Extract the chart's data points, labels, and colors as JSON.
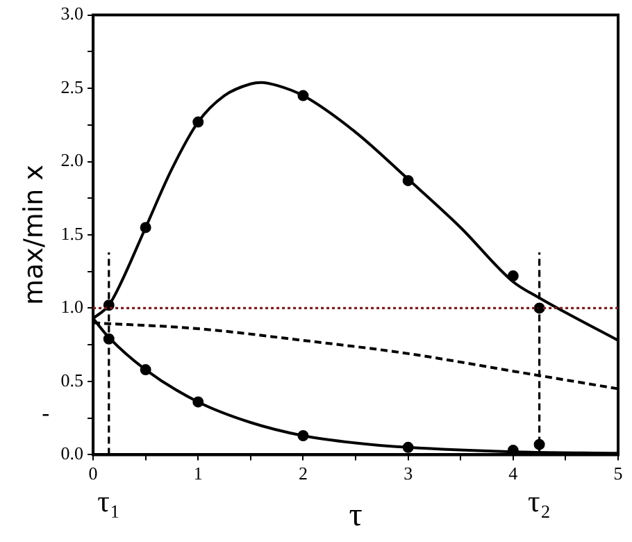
{
  "chart_data": {
    "type": "line",
    "xlabel": "τ",
    "ylabel": "max/min x",
    "annotations": [
      "-"
    ],
    "xlim": [
      0,
      5
    ],
    "ylim": [
      0,
      3
    ],
    "xticks": [
      0,
      {
        "value": 0.5,
        "label": null
      },
      1,
      {
        "value": 1.5,
        "label": null
      },
      2,
      {
        "value": 2.5,
        "label": null
      },
      3,
      {
        "value": 3.5,
        "label": null
      },
      4,
      {
        "value": 4.5,
        "label": null
      },
      5
    ],
    "yticks": [
      {
        "value": 0,
        "label": "0.0"
      },
      {
        "value": 0.25,
        "label": null
      },
      {
        "value": 0.5,
        "label": "0.5"
      },
      {
        "value": 0.75,
        "label": null
      },
      {
        "value": 1,
        "label": "1.0"
      },
      {
        "value": 1.25,
        "label": null
      },
      {
        "value": 1.5,
        "label": "1.5"
      },
      {
        "value": 1.75,
        "label": null
      },
      {
        "value": 2,
        "label": "2.0"
      },
      {
        "value": 2.25,
        "label": null
      },
      {
        "value": 2.5,
        "label": "2.5"
      },
      {
        "value": 2.75,
        "label": null
      },
      {
        "value": 3,
        "label": "3.0"
      }
    ],
    "grid": false,
    "legend": false,
    "series": [
      {
        "type": "line",
        "color": "#000000",
        "line_style": "solid",
        "x": [
          0,
          0.15,
          0.25,
          0.5,
          0.75,
          1,
          1.25,
          1.5,
          1.6,
          1.75,
          2,
          2.5,
          3,
          3.5,
          4,
          4.25,
          4.5,
          5
        ],
        "values": [
          0.93,
          1.02,
          1.15,
          1.55,
          1.95,
          2.27,
          2.45,
          2.53,
          2.54,
          2.52,
          2.45,
          2.2,
          1.88,
          1.55,
          1.18,
          1.07,
          0.97,
          0.78
        ]
      },
      {
        "type": "line",
        "color": "#000000",
        "line_style": "solid",
        "x": [
          0,
          0.15,
          0.5,
          1,
          1.5,
          2,
          2.5,
          3,
          4,
          5
        ],
        "values": [
          0.93,
          0.8,
          0.58,
          0.36,
          0.22,
          0.13,
          0.08,
          0.05,
          0.02,
          0.01
        ]
      },
      {
        "type": "line",
        "color": "#000000",
        "line_style": "dashed",
        "x": [
          0,
          1,
          2,
          3,
          4,
          5
        ],
        "values": [
          0.9,
          0.86,
          0.78,
          0.69,
          0.57,
          0.45
        ]
      },
      {
        "type": "scatter",
        "color": "#000000",
        "marker": "circle",
        "x": [
          0.15,
          0.5,
          1,
          2,
          3,
          4,
          4.25
        ],
        "values": [
          1.02,
          1.55,
          2.27,
          2.45,
          1.87,
          1.22,
          1.0
        ]
      },
      {
        "type": "scatter",
        "color": "#000000",
        "marker": "circle",
        "x": [
          0.15,
          0.5,
          1,
          2,
          3,
          4,
          4.25
        ],
        "values": [
          0.79,
          0.58,
          0.36,
          0.13,
          0.05,
          0.03,
          0.07
        ]
      }
    ],
    "ref_lines": [
      {
        "axis": "y",
        "value": 1,
        "color": "#7b1c1c",
        "line_style": "dotted"
      },
      {
        "axis": "x",
        "value": 0.15,
        "label": "τ₁",
        "color": "#000000",
        "line_style": "dashed"
      },
      {
        "axis": "x",
        "value": 4.25,
        "label": "τ₂",
        "color": "#000000",
        "line_style": "dashed"
      }
    ]
  }
}
